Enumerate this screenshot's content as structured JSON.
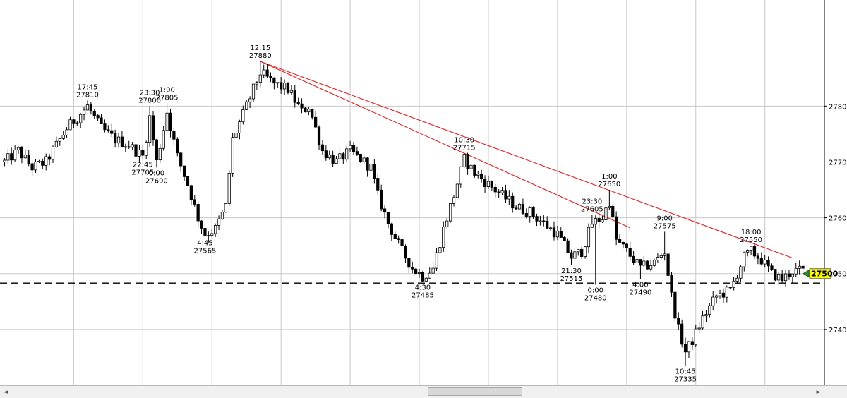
{
  "chart_data": {
    "type": "candlestick",
    "y_ticks": [
      "2780",
      "2770",
      "2760",
      "2750",
      "2740"
    ],
    "y_tick_values": [
      27800,
      27700,
      27600,
      27500,
      27400
    ],
    "ylim": [
      27300,
      27990
    ],
    "x_count": 232,
    "grid": true,
    "current_price_label": "27500",
    "current_price": 27500,
    "horizontal_dashed_level": 27483,
    "trendlines": [
      {
        "x1": 74,
        "y1": 27880,
        "x2": 228,
        "y2": 27528
      },
      {
        "x1": 74,
        "y1": 27880,
        "x2": 181,
        "y2": 27582
      }
    ],
    "annotations": [
      {
        "index": 24,
        "time": "17:45",
        "price": "27810",
        "position": "above",
        "value": 27810
      },
      {
        "index": 42,
        "time": "23:30",
        "price": "27800",
        "position": "above",
        "value": 27800
      },
      {
        "index": 47,
        "time": "1:00",
        "price": "27805",
        "position": "above",
        "value": 27805
      },
      {
        "index": 40,
        "time": "22:45",
        "price": "27705",
        "position": "below",
        "value": 27705
      },
      {
        "index": 44,
        "time": "0:00",
        "price": "27690",
        "position": "below",
        "value": 27690
      },
      {
        "index": 58,
        "time": "4:45",
        "price": "27565",
        "position": "below",
        "value": 27565
      },
      {
        "index": 74,
        "time": "12:15",
        "price": "27880",
        "position": "above",
        "value": 27880
      },
      {
        "index": 121,
        "time": "4:30",
        "price": "27485",
        "position": "below",
        "value": 27485
      },
      {
        "index": 133,
        "time": "10:30",
        "price": "27715",
        "position": "above",
        "value": 27715
      },
      {
        "index": 175,
        "time": "1:00",
        "price": "27650",
        "position": "above",
        "value": 27650
      },
      {
        "index": 170,
        "time": "23:30",
        "price": "27605",
        "position": "above",
        "value": 27605
      },
      {
        "index": 164,
        "time": "21:30",
        "price": "27515",
        "position": "below",
        "value": 27515
      },
      {
        "index": 171,
        "time": "0:00",
        "price": "27480",
        "position": "below",
        "value": 27480
      },
      {
        "index": 184,
        "time": "4:00",
        "price": "27490",
        "position": "below",
        "value": 27490
      },
      {
        "index": 191,
        "time": "9:00",
        "price": "27575",
        "position": "above",
        "value": 27575
      },
      {
        "index": 197,
        "time": "10:45",
        "price": "27335",
        "position": "below",
        "value": 27335
      },
      {
        "index": 216,
        "time": "18:00",
        "price": "27550",
        "position": "above",
        "value": 27550
      }
    ],
    "anchors": [
      [
        0,
        27700
      ],
      [
        4,
        27720
      ],
      [
        8,
        27690
      ],
      [
        12,
        27700
      ],
      [
        15,
        27730
      ],
      [
        18,
        27760
      ],
      [
        24,
        27800
      ],
      [
        28,
        27760
      ],
      [
        32,
        27740
      ],
      [
        36,
        27730
      ],
      [
        40,
        27710
      ],
      [
        42,
        27780
      ],
      [
        44,
        27700
      ],
      [
        47,
        27790
      ],
      [
        50,
        27710
      ],
      [
        53,
        27660
      ],
      [
        56,
        27600
      ],
      [
        58,
        27570
      ],
      [
        61,
        27580
      ],
      [
        64,
        27620
      ],
      [
        66,
        27740
      ],
      [
        70,
        27800
      ],
      [
        74,
        27860
      ],
      [
        78,
        27840
      ],
      [
        82,
        27830
      ],
      [
        84,
        27810
      ],
      [
        86,
        27790
      ],
      [
        88,
        27800
      ],
      [
        92,
        27720
      ],
      [
        96,
        27700
      ],
      [
        100,
        27720
      ],
      [
        104,
        27700
      ],
      [
        106,
        27690
      ],
      [
        108,
        27640
      ],
      [
        111,
        27590
      ],
      [
        115,
        27540
      ],
      [
        118,
        27510
      ],
      [
        121,
        27495
      ],
      [
        124,
        27510
      ],
      [
        127,
        27580
      ],
      [
        130,
        27640
      ],
      [
        133,
        27705
      ],
      [
        136,
        27680
      ],
      [
        140,
        27660
      ],
      [
        144,
        27640
      ],
      [
        148,
        27620
      ],
      [
        152,
        27610
      ],
      [
        156,
        27590
      ],
      [
        160,
        27570
      ],
      [
        164,
        27530
      ],
      [
        167,
        27540
      ],
      [
        170,
        27590
      ],
      [
        173,
        27600
      ],
      [
        175,
        27630
      ],
      [
        177,
        27560
      ],
      [
        180,
        27540
      ],
      [
        184,
        27510
      ],
      [
        188,
        27520
      ],
      [
        191,
        27540
      ],
      [
        193,
        27460
      ],
      [
        195,
        27400
      ],
      [
        197,
        27360
      ],
      [
        199,
        27380
      ],
      [
        202,
        27420
      ],
      [
        206,
        27460
      ],
      [
        210,
        27470
      ],
      [
        212,
        27500
      ],
      [
        214,
        27530
      ],
      [
        216,
        27540
      ],
      [
        219,
        27525
      ],
      [
        222,
        27500
      ],
      [
        225,
        27490
      ],
      [
        228,
        27505
      ]
    ]
  },
  "scrollbar": {
    "left_arrow": "◄",
    "right_arrow": "►"
  }
}
